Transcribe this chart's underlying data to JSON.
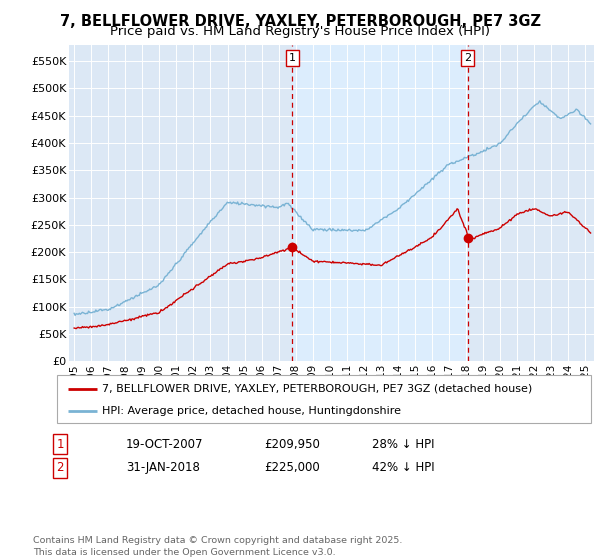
{
  "title": "7, BELLFLOWER DRIVE, YAXLEY, PETERBOROUGH, PE7 3GZ",
  "subtitle": "Price paid vs. HM Land Registry's House Price Index (HPI)",
  "title_fontsize": 10.5,
  "subtitle_fontsize": 9.5,
  "ylabel_ticks": [
    "£0",
    "£50K",
    "£100K",
    "£150K",
    "£200K",
    "£250K",
    "£300K",
    "£350K",
    "£400K",
    "£450K",
    "£500K",
    "£550K"
  ],
  "ylabel_values": [
    0,
    50000,
    100000,
    150000,
    200000,
    250000,
    300000,
    350000,
    400000,
    450000,
    500000,
    550000
  ],
  "ylim": [
    0,
    580000
  ],
  "xlim_start": 1994.7,
  "xlim_end": 2025.5,
  "hpi_color": "#7ab3d4",
  "hpi_fill_color": "#ddeeff",
  "price_color": "#cc0000",
  "marker1_date": 2007.8,
  "marker1_price": 209950,
  "marker1_label": "1",
  "marker2_date": 2018.08,
  "marker2_price": 225000,
  "marker2_label": "2",
  "legend_line1": "7, BELLFLOWER DRIVE, YAXLEY, PETERBOROUGH, PE7 3GZ (detached house)",
  "legend_line2": "HPI: Average price, detached house, Huntingdonshire",
  "table_row1": [
    "1",
    "19-OCT-2007",
    "£209,950",
    "28% ↓ HPI"
  ],
  "table_row2": [
    "2",
    "31-JAN-2018",
    "£225,000",
    "42% ↓ HPI"
  ],
  "footer": "Contains HM Land Registry data © Crown copyright and database right 2025.\nThis data is licensed under the Open Government Licence v3.0.",
  "grid_color": "#ffffff",
  "bg_color": "#dce8f5"
}
